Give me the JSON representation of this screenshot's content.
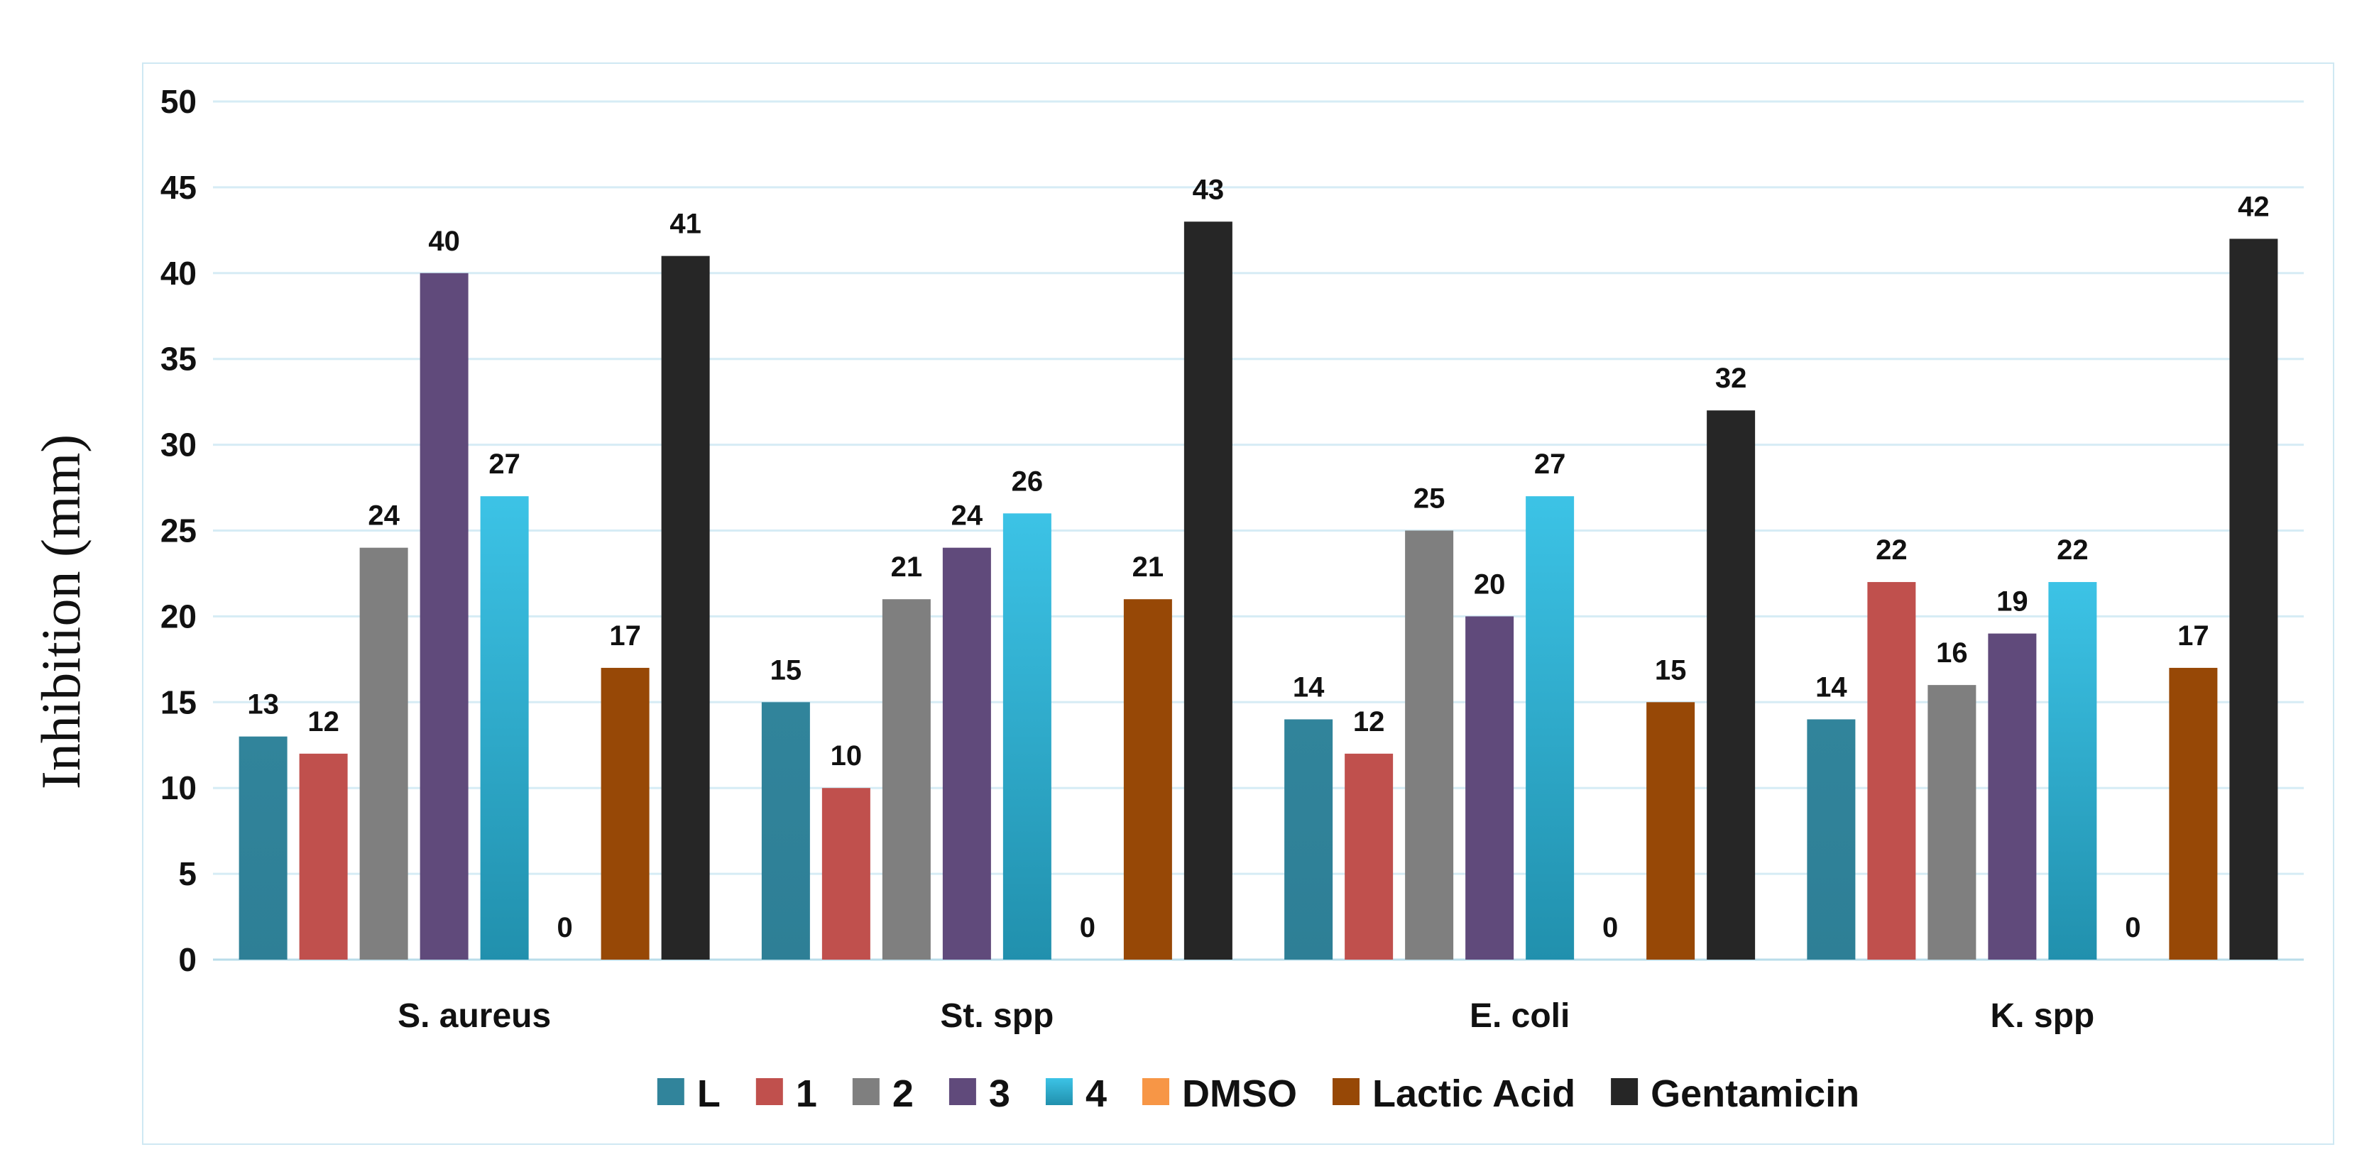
{
  "chart_data": {
    "type": "bar",
    "title": "",
    "xlabel": "",
    "ylabel": "Inhibition (mm)",
    "ylim": [
      0,
      50
    ],
    "yticks": [
      0,
      5,
      10,
      15,
      20,
      25,
      30,
      35,
      40,
      45,
      50
    ],
    "grid": true,
    "legend_position": "bottom",
    "categories": [
      "S. aureus",
      "St. spp",
      "E. coli",
      "K. spp"
    ],
    "series": [
      {
        "name": "L",
        "color": "#31849b",
        "values": [
          13,
          15,
          14,
          14
        ]
      },
      {
        "name": "1",
        "color": "#c0504d",
        "values": [
          12,
          10,
          12,
          22
        ]
      },
      {
        "name": "2",
        "color": "#7f7f7f",
        "values": [
          24,
          21,
          25,
          16
        ]
      },
      {
        "name": "3",
        "color": "#604a7b",
        "values": [
          40,
          24,
          20,
          19
        ]
      },
      {
        "name": "4",
        "color": "#31b0d5",
        "values": [
          27,
          26,
          27,
          22
        ]
      },
      {
        "name": "DMSO",
        "color": "#f79646",
        "values": [
          0,
          0,
          0,
          0
        ]
      },
      {
        "name": "Lactic Acid",
        "color": "#974806",
        "values": [
          17,
          21,
          15,
          17
        ]
      },
      {
        "name": "Gentamicin",
        "color": "#262626",
        "values": [
          41,
          43,
          32,
          42
        ]
      }
    ]
  }
}
